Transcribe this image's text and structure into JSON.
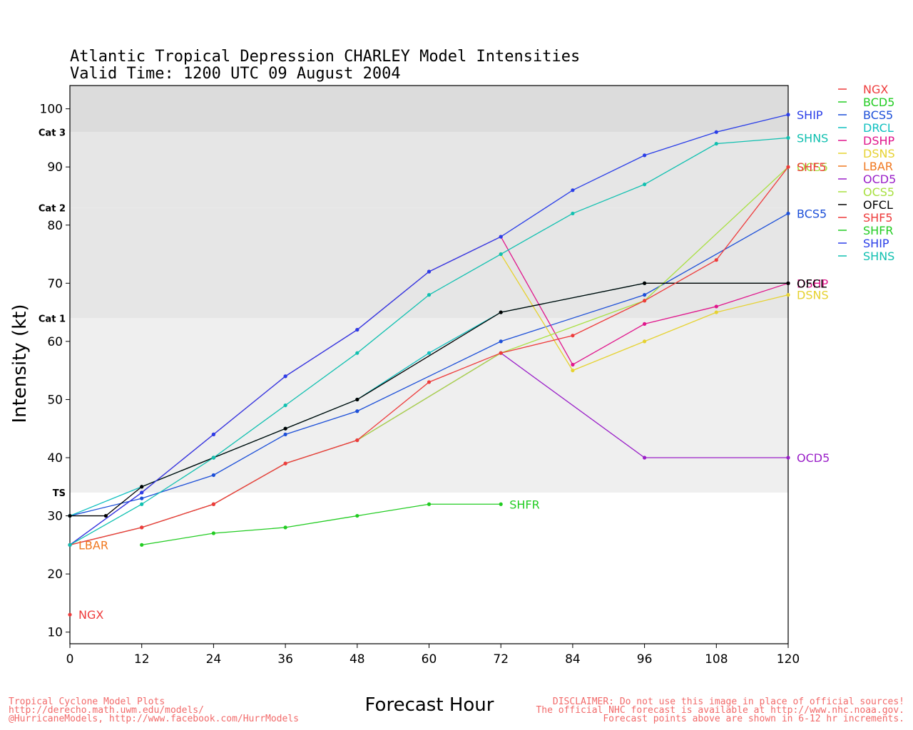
{
  "title_line1": "Atlantic Tropical Depression CHARLEY Model Intensities",
  "title_line2": "Valid Time: 1200 UTC 09 August 2004",
  "xlabel": "Forecast Hour",
  "ylabel": "Intensity (kt)",
  "footer_left": [
    "Tropical Cyclone Model Plots",
    "http://derecho.math.uwm.edu/models/",
    "@HurricaneModels, http://www.facebook.com/HurrModels"
  ],
  "footer_right": [
    "DISCLAIMER: Do not use this image in place of official sources!",
    "The official NHC forecast is available at http://www.nhc.noaa.gov.",
    "Forecast points above are shown in 6-12 hr increments."
  ],
  "chart_data": {
    "type": "line",
    "xlim": [
      0,
      120
    ],
    "ylim": [
      8,
      104
    ],
    "xticks": [
      0,
      12,
      24,
      36,
      48,
      60,
      72,
      84,
      96,
      108,
      120
    ],
    "yticks": [
      10,
      20,
      30,
      40,
      50,
      60,
      70,
      80,
      90,
      100
    ],
    "bands": [
      {
        "label": "TS",
        "from": 34,
        "to": 64,
        "color": "#efefef"
      },
      {
        "label": "Cat 1",
        "from": 64,
        "to": 83,
        "color": "#e6e6e6"
      },
      {
        "label": "Cat 2",
        "from": 83,
        "to": 96,
        "color": "#e6e6e6"
      },
      {
        "label": "Cat 3",
        "from": 96,
        "to": 104,
        "color": "#dcdcdc"
      }
    ],
    "legend_position": "right",
    "series": [
      {
        "name": "NGX",
        "color": "#ee3b3b",
        "x": [
          0
        ],
        "y": [
          13
        ],
        "end_label": "NGX"
      },
      {
        "name": "BCD5",
        "color": "#22cc22",
        "x": [],
        "y": [],
        "end_label": ""
      },
      {
        "name": "BCS5",
        "color": "#1c4fd8",
        "x": [
          0,
          12,
          24,
          36,
          48,
          72,
          96,
          120
        ],
        "y": [
          30,
          33,
          37,
          44,
          48,
          60,
          68,
          82
        ],
        "end_label": "BCS5"
      },
      {
        "name": "DRCL",
        "color": "#10c0c0",
        "x": [
          0,
          12,
          24,
          36,
          48,
          60,
          72,
          96,
          120
        ],
        "y": [
          30,
          35,
          40,
          45,
          50,
          58,
          65,
          70,
          70
        ],
        "end_label": ""
      },
      {
        "name": "DSHP",
        "color": "#e0168c",
        "x": [
          0,
          12,
          24,
          36,
          48,
          60,
          72,
          84,
          96,
          108,
          120
        ],
        "y": [
          25,
          34,
          44,
          54,
          62,
          72,
          78,
          56,
          63,
          66,
          70
        ],
        "end_label": "DSHP"
      },
      {
        "name": "DSNS",
        "color": "#e6d230",
        "x": [
          72,
          84,
          96,
          108,
          120
        ],
        "y": [
          75,
          55,
          60,
          65,
          68
        ],
        "end_label": "DSNS"
      },
      {
        "name": "LBAR",
        "color": "#f07820",
        "x": [
          0
        ],
        "y": [
          25
        ],
        "end_label": "LBAR"
      },
      {
        "name": "OCD5",
        "color": "#9a1fc8",
        "x": [
          0,
          12,
          24,
          36,
          48,
          72,
          96,
          120
        ],
        "y": [
          25,
          28,
          32,
          39,
          43,
          58,
          40,
          40
        ],
        "end_label": "OCD5"
      },
      {
        "name": "OCS5",
        "color": "#a8e040",
        "x": [
          0,
          12,
          24,
          36,
          48,
          72,
          96,
          120
        ],
        "y": [
          25,
          28,
          32,
          39,
          43,
          58,
          67,
          90
        ],
        "end_label": "OCS5"
      },
      {
        "name": "OFCL",
        "color": "#000000",
        "x": [
          0,
          6,
          12,
          24,
          36,
          48,
          72,
          96,
          120
        ],
        "y": [
          30,
          30,
          35,
          40,
          45,
          50,
          65,
          70,
          70
        ],
        "end_label": "OFCL"
      },
      {
        "name": "SHF5",
        "color": "#ee3b3b",
        "x": [
          0,
          12,
          24,
          36,
          48,
          60,
          72,
          84,
          96,
          108,
          120
        ],
        "y": [
          25,
          28,
          32,
          39,
          43,
          53,
          58,
          61,
          67,
          74,
          90
        ],
        "end_label": "SHF5"
      },
      {
        "name": "SHFR",
        "color": "#22cc22",
        "x": [
          12,
          24,
          36,
          48,
          60,
          72
        ],
        "y": [
          25,
          27,
          28,
          30,
          32,
          32
        ],
        "end_label": "SHFR"
      },
      {
        "name": "SHIP",
        "color": "#2a3ee8",
        "x": [
          0,
          12,
          24,
          36,
          48,
          60,
          72,
          84,
          96,
          108,
          120
        ],
        "y": [
          25,
          34,
          44,
          54,
          62,
          72,
          78,
          86,
          92,
          96,
          99
        ],
        "end_label": "SHIP"
      },
      {
        "name": "SHNS",
        "color": "#10c0b0",
        "x": [
          0,
          12,
          24,
          36,
          48,
          60,
          72,
          84,
          96,
          108,
          120
        ],
        "y": [
          25,
          32,
          40,
          49,
          58,
          68,
          75,
          82,
          87,
          94,
          95
        ],
        "end_label": "SHNS"
      }
    ]
  }
}
